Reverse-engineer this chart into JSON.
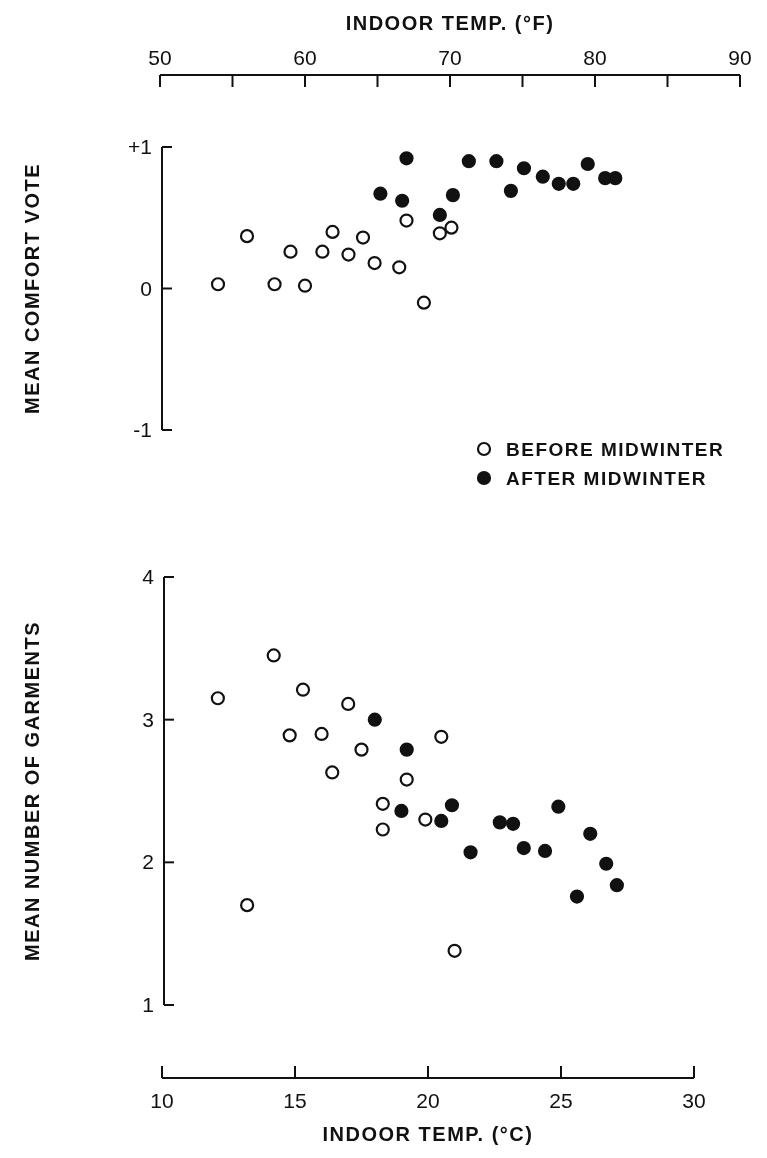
{
  "chart_data": [
    {
      "type": "scatter",
      "xlabel": "INDOOR TEMP. (°F)",
      "ylabel": "MEAN COMFORT VOTE",
      "xlim": [
        50,
        90
      ],
      "xticks": [
        50,
        60,
        70,
        80,
        90
      ],
      "ylim": [
        -1,
        1
      ],
      "yticks": [
        {
          "value": -1,
          "label": "-1"
        },
        0,
        {
          "value": 1,
          "label": "+1"
        }
      ],
      "marker": "circle",
      "legend": "bottom right",
      "series": [
        {
          "name": "BEFORE MIDWINTER",
          "color": "#ffffff",
          "x": [
            54.0,
            56.0,
            57.9,
            59.0,
            60.0,
            61.2,
            61.9,
            63.0,
            64.0,
            64.8,
            66.5,
            67.0,
            68.2,
            69.3,
            70.1
          ],
          "values": [
            0.03,
            0.37,
            0.03,
            0.26,
            0.02,
            0.26,
            0.4,
            0.24,
            0.36,
            0.18,
            0.15,
            0.48,
            -0.1,
            0.39,
            0.43
          ]
        },
        {
          "name": "AFTER MIDWINTER",
          "color": "#111111",
          "x": [
            65.2,
            66.7,
            67.0,
            69.3,
            70.2,
            71.3,
            73.2,
            74.2,
            75.1,
            76.4,
            77.5,
            78.5,
            79.5,
            80.7,
            81.4
          ],
          "values": [
            0.67,
            0.62,
            0.92,
            0.52,
            0.66,
            0.9,
            0.9,
            0.69,
            0.85,
            0.79,
            0.74,
            0.74,
            0.88,
            0.78,
            0.78
          ]
        }
      ]
    },
    {
      "type": "scatter",
      "xlabel": "INDOOR TEMP. (°C)",
      "ylabel": "MEAN NUMBER OF GARMENTS",
      "xlim": [
        10,
        30
      ],
      "xticks": [
        10,
        15,
        20,
        25,
        30
      ],
      "ylim": [
        1,
        4
      ],
      "yticks": [
        1,
        2,
        3,
        4
      ],
      "marker": "circle",
      "series": [
        {
          "color": "#ffffff",
          "x": [
            12.1,
            14.2,
            13.2,
            15.3,
            14.8,
            16.0,
            17.0,
            16.4,
            17.5,
            20.5,
            19.2,
            18.3,
            18.3,
            19.9,
            21.0
          ],
          "values": [
            3.15,
            3.45,
            1.7,
            3.21,
            2.89,
            2.9,
            3.11,
            2.63,
            2.79,
            2.88,
            2.58,
            2.41,
            2.23,
            2.3,
            1.38
          ]
        },
        {
          "color": "#111111",
          "x": [
            18.0,
            19.2,
            19.0,
            20.5,
            20.9,
            21.6,
            22.7,
            23.2,
            23.6,
            24.4,
            24.9,
            25.6,
            26.1,
            26.7,
            27.1
          ],
          "values": [
            3.0,
            2.79,
            2.36,
            2.29,
            2.4,
            2.07,
            2.28,
            2.27,
            2.1,
            2.08,
            2.39,
            1.76,
            2.2,
            1.99,
            1.84
          ]
        }
      ]
    }
  ]
}
